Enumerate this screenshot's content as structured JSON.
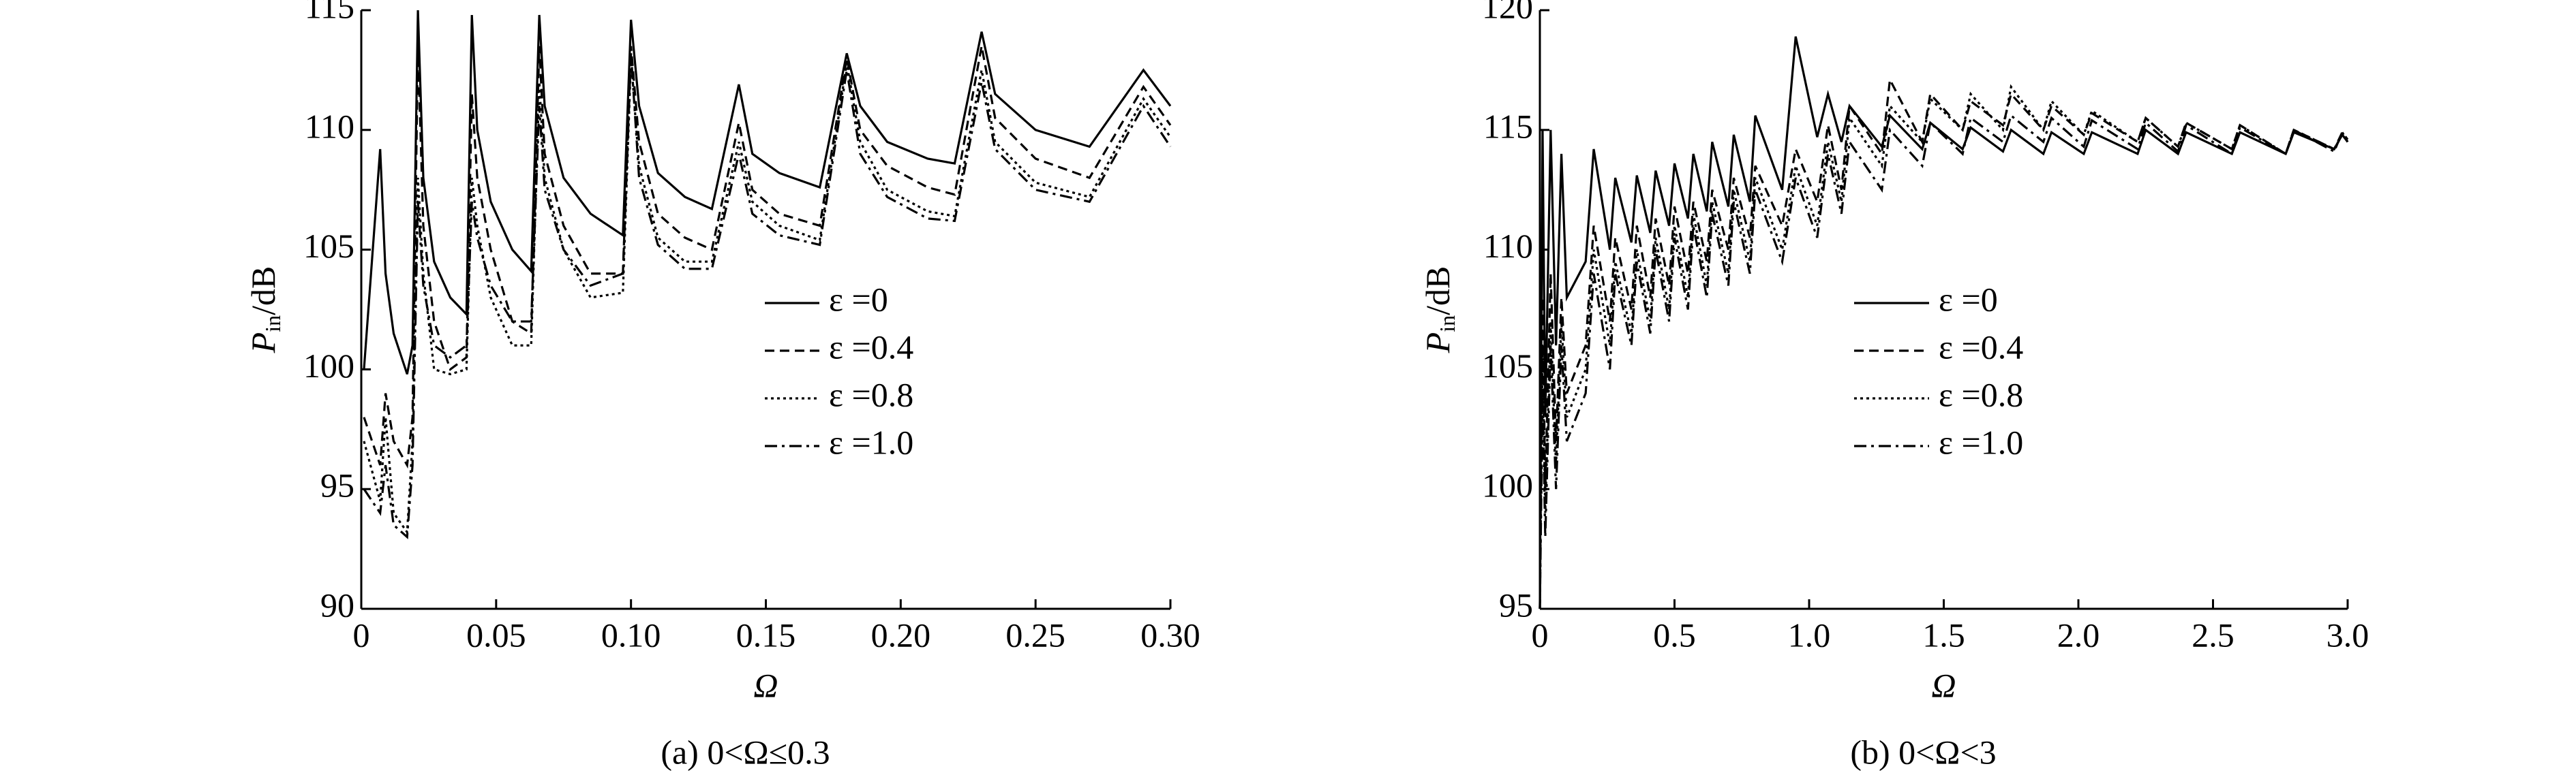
{
  "chart_data": [
    {
      "type": "line",
      "caption": "(a) 0<Ω≤0.3",
      "x_label": "Ω",
      "y_label": "P",
      "y_label_sub": "in",
      "y_label_unit": "/dB",
      "xlim": [
        0,
        0.3
      ],
      "xticks": [
        0,
        0.05,
        {
          "value": 0.1,
          "label": "0.10"
        },
        0.15,
        {
          "value": 0.2,
          "label": "0.20"
        },
        0.25,
        {
          "value": 0.3,
          "label": "0.30"
        }
      ],
      "ylim": [
        90,
        115
      ],
      "yticks": [
        90,
        95,
        100,
        105,
        110,
        115
      ],
      "x": [
        0.001,
        0.007,
        0.009,
        0.012,
        0.017,
        0.019,
        0.021,
        0.023,
        0.027,
        0.033,
        0.039,
        0.041,
        0.043,
        0.048,
        0.056,
        0.063,
        0.066,
        0.068,
        0.075,
        0.085,
        0.097,
        0.1,
        0.103,
        0.11,
        0.12,
        0.13,
        0.14,
        0.145,
        0.155,
        0.17,
        0.18,
        0.185,
        0.195,
        0.21,
        0.22,
        0.23,
        0.235,
        0.25,
        0.27,
        0.29,
        0.3
      ],
      "series": [
        {
          "name": "ε =0",
          "color": "#000000",
          "dash": "solid",
          "values": [
            100,
            109.2,
            104,
            101.5,
            99.8,
            101,
            115,
            108,
            104.5,
            103,
            102.3,
            114.8,
            110,
            107,
            105,
            104.1,
            114.8,
            111,
            108,
            106.5,
            105.6,
            114.6,
            111,
            108.2,
            107.2,
            106.7,
            111.9,
            109,
            108.2,
            107.6,
            113.2,
            111,
            109.5,
            108.8,
            108.6,
            114.1,
            111.5,
            110,
            109.3,
            112.5,
            111
          ]
        },
        {
          "name": "ε =0.4",
          "color": "#000000",
          "dash": "dashed",
          "values": [
            98,
            96,
            99,
            97,
            96,
            98,
            113.5,
            106,
            102,
            100,
            100.5,
            111.5,
            108,
            105,
            102,
            101.5,
            113.5,
            109,
            106,
            104,
            104,
            113.5,
            109.5,
            106.5,
            105.5,
            105,
            110.3,
            107.5,
            106.5,
            106,
            113,
            110,
            108.5,
            107.6,
            107.3,
            113.5,
            110.5,
            108.8,
            108,
            111.8,
            110.2
          ]
        },
        {
          "name": "ε =0.8",
          "color": "#000000",
          "dash": "dotted",
          "values": [
            97,
            94.5,
            98,
            94,
            93.2,
            97,
            108,
            104,
            100,
            99.8,
            100,
            108,
            106,
            103,
            101,
            101,
            112,
            108,
            105,
            103,
            103.2,
            113,
            108.5,
            105.5,
            104.5,
            104.5,
            109.5,
            107,
            106,
            105.4,
            112.8,
            109.5,
            107.5,
            106.6,
            106.4,
            112.5,
            109.5,
            107.8,
            107.2,
            111.3,
            109.7
          ]
        },
        {
          "name": "ε =1.0",
          "color": "#000000",
          "dash": "dashdot",
          "values": [
            95,
            94,
            96,
            93.5,
            93,
            96,
            107,
            103.5,
            101,
            100.5,
            101,
            107,
            105.5,
            103.5,
            102,
            102,
            111,
            107.5,
            105,
            103.5,
            104,
            113.2,
            108,
            105.2,
            104.2,
            104.2,
            109,
            106.5,
            105.6,
            105.2,
            112.5,
            109,
            107.2,
            106.3,
            106.2,
            112,
            109.2,
            107.5,
            107,
            111,
            109.3
          ]
        }
      ]
    },
    {
      "type": "line",
      "caption": "(b) 0<Ω<3",
      "x_label": "Ω",
      "y_label": "P",
      "y_label_sub": "in",
      "y_label_unit": "/dB",
      "xlim": [
        0,
        3
      ],
      "xticks": [
        0,
        0.5,
        {
          "value": 1,
          "label": "1.0"
        },
        1.5,
        {
          "value": 2,
          "label": "2.0"
        },
        2.5,
        {
          "value": 3,
          "label": "3.0"
        }
      ],
      "ylim": [
        95,
        120
      ],
      "yticks": [
        95,
        100,
        105,
        110,
        115,
        120
      ],
      "x": [
        0,
        0.01,
        0.02,
        0.04,
        0.06,
        0.08,
        0.1,
        0.17,
        0.2,
        0.26,
        0.28,
        0.34,
        0.36,
        0.41,
        0.43,
        0.48,
        0.5,
        0.55,
        0.57,
        0.62,
        0.64,
        0.7,
        0.72,
        0.78,
        0.8,
        0.9,
        0.95,
        1.03,
        1.07,
        1.12,
        1.15,
        1.27,
        1.3,
        1.42,
        1.45,
        1.57,
        1.6,
        1.72,
        1.75,
        1.87,
        1.9,
        2.02,
        2.05,
        2.22,
        2.25,
        2.37,
        2.4,
        2.57,
        2.6,
        2.77,
        2.8,
        2.95,
        2.98,
        3.0
      ],
      "series": [
        {
          "name": "ε =0",
          "color": "#000000",
          "dash": "solid",
          "values": [
            95,
            115,
            103,
            115,
            106,
            114,
            108,
            109.5,
            114.2,
            110,
            113,
            110.3,
            113.1,
            110.7,
            113.3,
            111,
            113.6,
            111.3,
            114,
            111.6,
            114.5,
            111.8,
            114.8,
            112,
            115.6,
            112.5,
            118.9,
            114.7,
            116.5,
            114.5,
            116,
            114.3,
            115.6,
            114.2,
            115.3,
            114.2,
            115.1,
            114.1,
            115,
            114,
            114.9,
            114,
            114.9,
            114,
            115,
            114,
            114.9,
            114,
            114.9,
            114,
            114.9,
            114.2,
            114.8,
            114.5
          ]
        },
        {
          "name": "ε =0.4",
          "color": "#000000",
          "dash": "dashed",
          "values": [
            95,
            108,
            100,
            109,
            102,
            108,
            104,
            106,
            111,
            107,
            110.5,
            107.5,
            111,
            108,
            111.3,
            108.5,
            111.8,
            109,
            112,
            109.5,
            112.5,
            110,
            113,
            110.5,
            113.5,
            111,
            114.2,
            112,
            115.2,
            112.5,
            116,
            114,
            117.1,
            114.5,
            116.5,
            115,
            116.2,
            115.2,
            116.5,
            115,
            116,
            114.8,
            115.7,
            114.5,
            115.5,
            114.3,
            115.3,
            114.2,
            115.2,
            114,
            115,
            114.2,
            114.9,
            114.6
          ]
        },
        {
          "name": "ε =0.8",
          "color": "#000000",
          "dash": "dotted",
          "values": [
            95,
            106,
            99,
            107,
            101,
            107,
            103,
            105,
            110,
            106,
            109.5,
            106.5,
            110,
            107,
            110.5,
            107.5,
            111,
            108,
            111.5,
            108.5,
            112,
            109,
            112.5,
            109.5,
            113,
            110,
            113.5,
            111,
            114.5,
            112,
            115.5,
            113.5,
            116,
            114.5,
            116.3,
            115,
            116.5,
            115,
            116.8,
            115,
            116.2,
            114.8,
            115.8,
            114.5,
            115.5,
            114.3,
            115.3,
            114.2,
            115.2,
            114,
            115,
            114.2,
            114.8,
            114.5
          ]
        },
        {
          "name": "ε =1.0",
          "color": "#000000",
          "dash": "dashdot",
          "values": [
            95,
            104,
            98,
            106,
            100,
            106,
            102,
            104,
            109,
            105,
            109,
            106,
            109.5,
            106.5,
            110,
            107,
            110.5,
            107.5,
            111,
            108,
            111.5,
            108.5,
            112,
            109,
            112.5,
            109.5,
            113,
            110.5,
            114,
            111.5,
            114.5,
            112.5,
            115,
            113.5,
            115.3,
            114,
            115.5,
            114.5,
            115.6,
            114.5,
            115.5,
            114.3,
            115.4,
            114.2,
            115.3,
            114.1,
            115.2,
            114,
            115.1,
            114,
            115,
            114.1,
            114.9,
            114.5
          ]
        }
      ]
    }
  ]
}
